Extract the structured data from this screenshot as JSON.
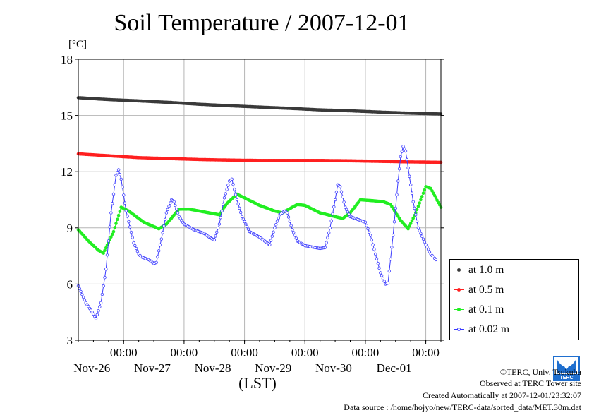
{
  "chart_data": {
    "type": "line",
    "title": "Soil Temperature / 2007-12-01",
    "ylabel": "[°C]",
    "xlabel": "(LST)",
    "ylim": [
      3,
      18
    ],
    "yticks": [
      3,
      6,
      9,
      12,
      15,
      18
    ],
    "xlim_hours": [
      0,
      144
    ],
    "xticks": [
      {
        "time": "00:00",
        "date": "Nov-26"
      },
      {
        "time": "00:00",
        "date": "Nov-27"
      },
      {
        "time": "00:00",
        "date": "Nov-28"
      },
      {
        "time": "00:00",
        "date": "Nov-29"
      },
      {
        "time": "00:00",
        "date": "Nov-30"
      },
      {
        "time": "00:00",
        "date": "Dec-01"
      }
    ],
    "grid": true,
    "legend_position": "right",
    "series": [
      {
        "name": "at 1.0 m",
        "color": "#3a3a3a",
        "points": [
          [
            0,
            15.95
          ],
          [
            12,
            15.85
          ],
          [
            24,
            15.78
          ],
          [
            36,
            15.7
          ],
          [
            48,
            15.6
          ],
          [
            60,
            15.52
          ],
          [
            72,
            15.45
          ],
          [
            84,
            15.38
          ],
          [
            96,
            15.3
          ],
          [
            108,
            15.25
          ],
          [
            120,
            15.18
          ],
          [
            132,
            15.12
          ],
          [
            144,
            15.08
          ]
        ]
      },
      {
        "name": "at 0.5 m",
        "color": "#ff2020",
        "points": [
          [
            0,
            12.95
          ],
          [
            12,
            12.85
          ],
          [
            24,
            12.75
          ],
          [
            36,
            12.7
          ],
          [
            48,
            12.65
          ],
          [
            60,
            12.62
          ],
          [
            72,
            12.6
          ],
          [
            84,
            12.6
          ],
          [
            96,
            12.6
          ],
          [
            108,
            12.58
          ],
          [
            120,
            12.55
          ],
          [
            132,
            12.52
          ],
          [
            144,
            12.5
          ]
        ]
      },
      {
        "name": "at 0.1 m",
        "color": "#22ee22",
        "points": [
          [
            0,
            8.9
          ],
          [
            4,
            8.3
          ],
          [
            8,
            7.8
          ],
          [
            10,
            7.65
          ],
          [
            14,
            8.8
          ],
          [
            17,
            10.1
          ],
          [
            20,
            9.9
          ],
          [
            26,
            9.3
          ],
          [
            32,
            8.95
          ],
          [
            35,
            9.2
          ],
          [
            40,
            10.0
          ],
          [
            44,
            10.0
          ],
          [
            50,
            9.85
          ],
          [
            56,
            9.7
          ],
          [
            59,
            10.3
          ],
          [
            63,
            10.8
          ],
          [
            66,
            10.6
          ],
          [
            72,
            10.2
          ],
          [
            78,
            9.9
          ],
          [
            81,
            9.8
          ],
          [
            87,
            10.25
          ],
          [
            90,
            10.2
          ],
          [
            96,
            9.8
          ],
          [
            102,
            9.6
          ],
          [
            105,
            9.5
          ],
          [
            108,
            9.8
          ],
          [
            112,
            10.5
          ],
          [
            117,
            10.45
          ],
          [
            121,
            10.4
          ],
          [
            124,
            10.25
          ],
          [
            128,
            9.4
          ],
          [
            131,
            8.95
          ],
          [
            134,
            9.8
          ],
          [
            138,
            11.2
          ],
          [
            140,
            11.1
          ],
          [
            144,
            10.1
          ]
        ]
      },
      {
        "name": "at 0.02 m",
        "color": "#3a3aff",
        "points": [
          [
            0,
            5.9
          ],
          [
            3,
            5.0
          ],
          [
            6,
            4.4
          ],
          [
            7,
            4.15
          ],
          [
            9,
            5.0
          ],
          [
            11,
            6.8
          ],
          [
            13,
            9.8
          ],
          [
            15,
            11.8
          ],
          [
            16,
            12.1
          ],
          [
            17,
            11.6
          ],
          [
            19,
            9.9
          ],
          [
            22,
            8.2
          ],
          [
            24,
            7.6
          ],
          [
            25,
            7.45
          ],
          [
            28,
            7.3
          ],
          [
            30,
            7.1
          ],
          [
            31,
            7.15
          ],
          [
            33,
            8.4
          ],
          [
            35,
            9.8
          ],
          [
            37,
            10.5
          ],
          [
            38,
            10.4
          ],
          [
            40,
            9.6
          ],
          [
            42,
            9.2
          ],
          [
            46,
            8.9
          ],
          [
            50,
            8.7
          ],
          [
            52,
            8.5
          ],
          [
            54,
            8.35
          ],
          [
            56,
            9.2
          ],
          [
            58,
            10.6
          ],
          [
            60,
            11.5
          ],
          [
            61,
            11.6
          ],
          [
            63,
            10.5
          ],
          [
            65,
            9.6
          ],
          [
            68,
            8.8
          ],
          [
            72,
            8.5
          ],
          [
            74,
            8.3
          ],
          [
            76,
            8.1
          ],
          [
            78,
            9.0
          ],
          [
            80,
            9.7
          ],
          [
            82,
            9.9
          ],
          [
            83,
            9.8
          ],
          [
            85,
            8.9
          ],
          [
            87,
            8.3
          ],
          [
            90,
            8.05
          ],
          [
            94,
            7.95
          ],
          [
            96,
            7.9
          ],
          [
            98,
            7.95
          ],
          [
            100,
            9.0
          ],
          [
            102,
            10.5
          ],
          [
            103,
            11.3
          ],
          [
            104,
            11.2
          ],
          [
            106,
            10.1
          ],
          [
            108,
            9.6
          ],
          [
            112,
            9.4
          ],
          [
            114,
            9.3
          ],
          [
            116,
            8.6
          ],
          [
            118,
            7.6
          ],
          [
            120,
            6.6
          ],
          [
            122,
            6.0
          ],
          [
            123,
            6.05
          ],
          [
            125,
            8.6
          ],
          [
            127,
            11.5
          ],
          [
            128,
            12.8
          ],
          [
            129,
            13.35
          ],
          [
            130,
            13.1
          ],
          [
            131,
            12.2
          ],
          [
            133,
            10.4
          ],
          [
            135,
            9.0
          ],
          [
            138,
            8.1
          ],
          [
            140,
            7.6
          ],
          [
            142,
            7.3
          ]
        ]
      }
    ]
  },
  "footer": {
    "copyright": "©TERC, Univ. Tsukuba",
    "observed": "Observed at TERC Tower site",
    "created": "Created Automatically at 2007-12-01/23:32:07",
    "source": "Data source : /home/hojyo/new/TERC-data/sorted_data/MET.30m.dat"
  },
  "logo_text": "TERC"
}
